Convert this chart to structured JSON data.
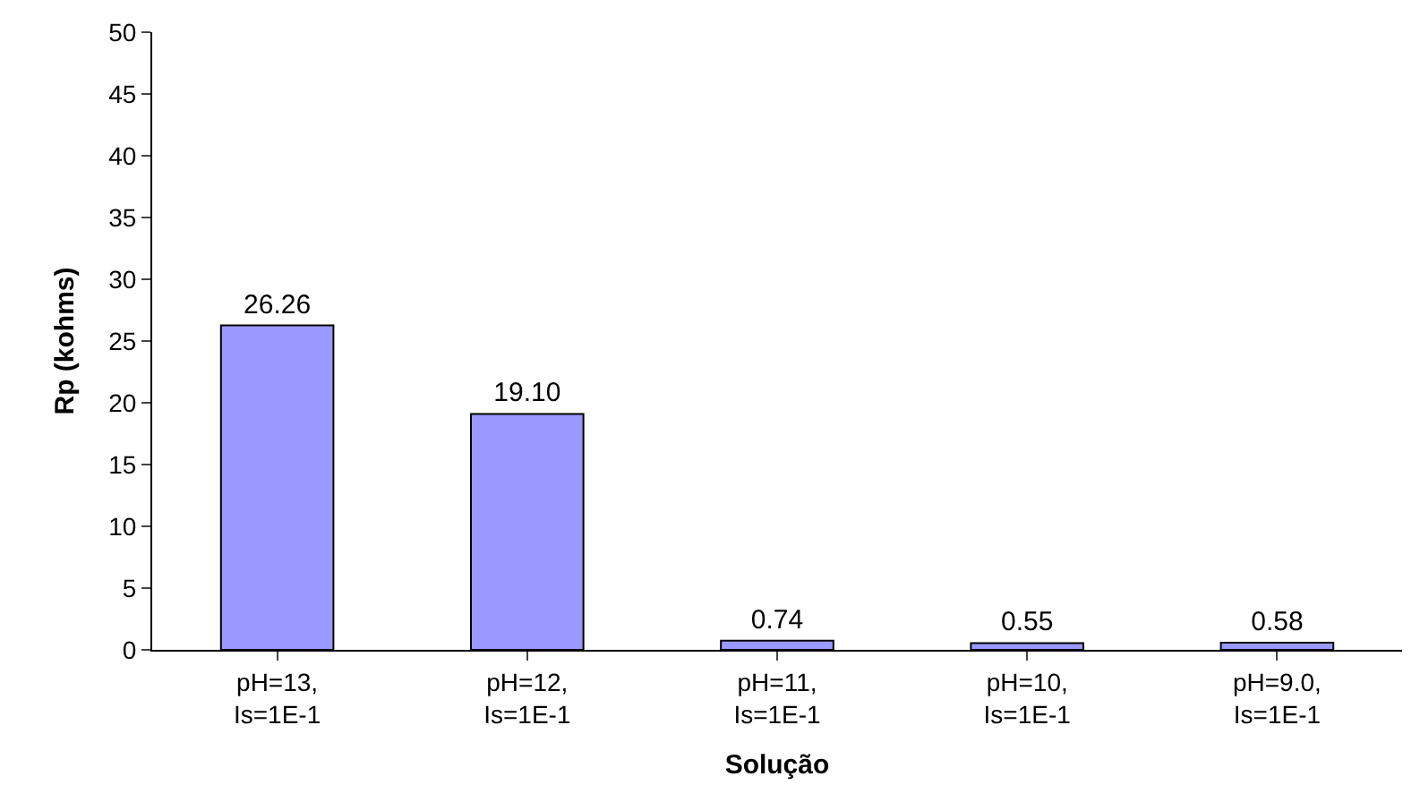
{
  "chart_data": {
    "type": "bar",
    "xlabel": "Solução",
    "ylabel": "Rp (kohms)",
    "categories": [
      "pH=13,\nIs=1E-1",
      "pH=12,\nIs=1E-1",
      "pH=11,\nIs=1E-1",
      "pH=10,\nIs=1E-1",
      "pH=9.0,\nIs=1E-1"
    ],
    "values": [
      26.26,
      19.1,
      0.74,
      0.55,
      0.58
    ],
    "value_labels": [
      "26.26",
      "19.10",
      "0.74",
      "0.55",
      "0.58"
    ],
    "color": "#9999ff",
    "ylim": [
      0,
      50
    ],
    "yticks": [
      0,
      5,
      10,
      15,
      20,
      25,
      30,
      35,
      40,
      45,
      50
    ]
  }
}
